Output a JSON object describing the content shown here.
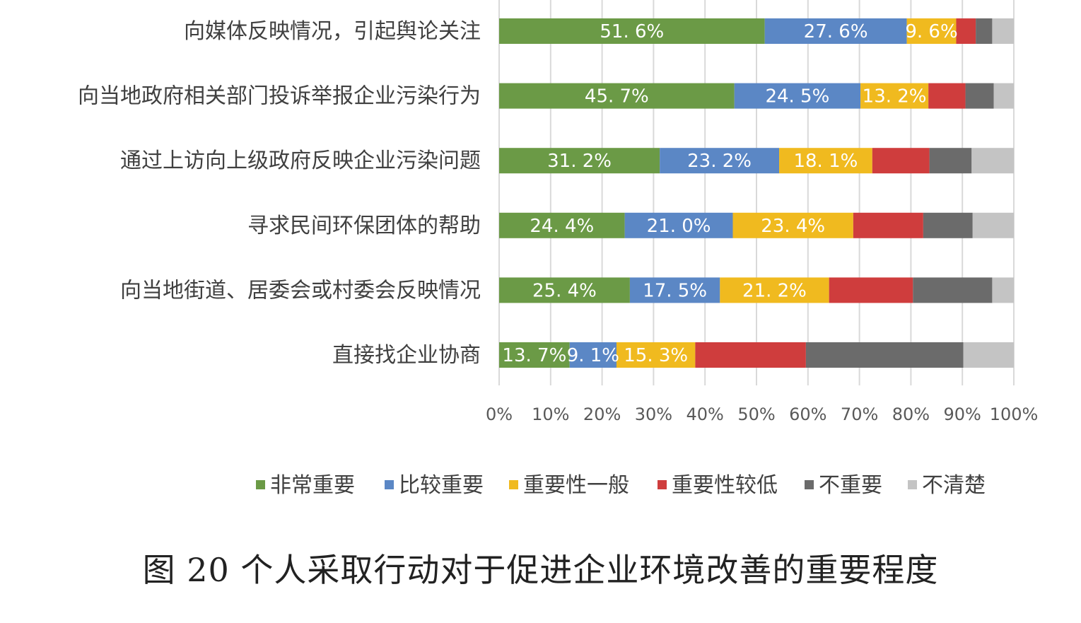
{
  "caption": "图 20 个人采取行动对于促进企业环境改善的重要程度",
  "chart_data": {
    "type": "bar",
    "orientation": "horizontal",
    "stacked": "percent",
    "categories": [
      "向媒体反映情况，引起舆论关注",
      "向当地政府相关部门投诉举报企业污染行为",
      "通过上访向上级政府反映企业污染问题",
      "寻求民间环保团体的帮助",
      "向当地街道、居委会或村委会反映情况",
      "直接找企业协商"
    ],
    "series": [
      {
        "name": "非常重要",
        "color": "#6b9a46",
        "values": [
          51.6,
          45.7,
          31.2,
          24.4,
          25.4,
          13.7
        ]
      },
      {
        "name": "比较重要",
        "color": "#5b87c5",
        "values": [
          27.6,
          24.5,
          23.2,
          21.0,
          17.5,
          9.1
        ]
      },
      {
        "name": "重要性一般",
        "color": "#f0ba1f",
        "values": [
          9.6,
          13.2,
          18.1,
          23.4,
          21.2,
          15.3
        ]
      },
      {
        "name": "重要性较低",
        "color": "#cf3d3d",
        "values": [
          3.8,
          7.2,
          11.1,
          13.6,
          16.3,
          21.5
        ]
      },
      {
        "name": "不重要",
        "color": "#6b6b6b",
        "values": [
          3.2,
          5.5,
          8.2,
          9.6,
          15.4,
          30.6
        ]
      },
      {
        "name": "不清楚",
        "color": "#c4c4c4",
        "values": [
          4.2,
          3.9,
          8.2,
          8.0,
          4.2,
          9.8
        ]
      }
    ],
    "data_labels": [
      [
        "51. 6%",
        "27. 6%",
        "9. 6%"
      ],
      [
        "45. 7%",
        "24. 5%",
        "13. 2%"
      ],
      [
        "31. 2%",
        "23. 2%",
        "18. 1%"
      ],
      [
        "24. 4%",
        "21. 0%",
        "23. 4%"
      ],
      [
        "25. 4%",
        "17. 5%",
        "21. 2%"
      ],
      [
        "13. 7%",
        "9. 1%",
        "15. 3%"
      ]
    ],
    "xlim": [
      0,
      100
    ],
    "xticks": [
      "0%",
      "10%",
      "20%",
      "30%",
      "40%",
      "50%",
      "60%",
      "70%",
      "80%",
      "90%",
      "100%"
    ],
    "grid": true,
    "legend": "bottom"
  }
}
